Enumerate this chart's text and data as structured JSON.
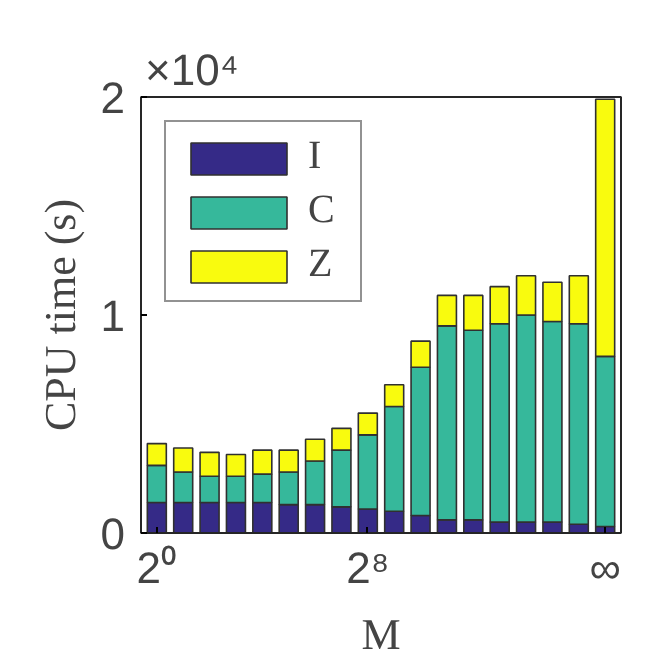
{
  "chart_data": {
    "type": "bar",
    "stacked": true,
    "xlabel": "M",
    "ylabel": "CPU time (s)",
    "annotations": [
      "×10⁴"
    ],
    "categories": [
      "2⁰",
      null,
      null,
      null,
      null,
      null,
      null,
      null,
      "2⁸",
      null,
      null,
      null,
      null,
      null,
      null,
      null,
      null,
      "∞"
    ],
    "series": [
      {
        "name": "I",
        "color": "#352a87",
        "values": [
          0.14,
          0.14,
          0.14,
          0.14,
          0.14,
          0.13,
          0.13,
          0.12,
          0.11,
          0.1,
          0.08,
          0.06,
          0.06,
          0.05,
          0.05,
          0.05,
          0.04,
          0.03
        ]
      },
      {
        "name": "C",
        "color": "#36b89b",
        "values": [
          0.17,
          0.14,
          0.12,
          0.12,
          0.13,
          0.15,
          0.2,
          0.26,
          0.34,
          0.48,
          0.68,
          0.89,
          0.87,
          0.91,
          0.95,
          0.92,
          0.92,
          0.78
        ]
      },
      {
        "name": "Z",
        "color": "#f9fb0e",
        "values": [
          0.1,
          0.11,
          0.11,
          0.1,
          0.11,
          0.1,
          0.1,
          0.1,
          0.1,
          0.1,
          0.12,
          0.14,
          0.16,
          0.17,
          0.18,
          0.18,
          0.22,
          1.18
        ]
      }
    ],
    "ylim": [
      0,
      2
    ],
    "yticks": [
      0,
      1,
      2
    ],
    "legend": "top left",
    "grid": false
  }
}
